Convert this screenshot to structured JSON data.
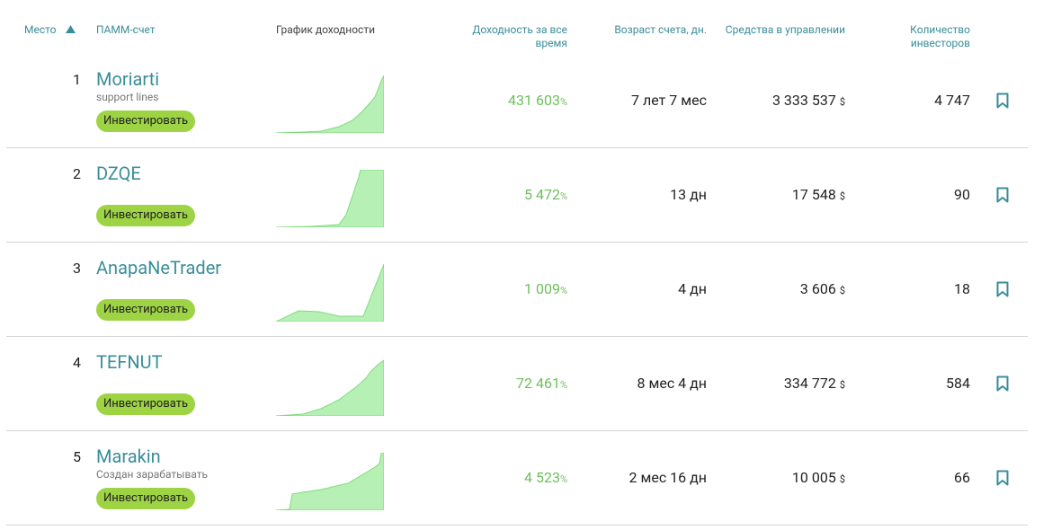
{
  "table": {
    "header": {
      "rank": "Место",
      "name": "ПАММ-счет",
      "chart": "График доходности",
      "return": "Доходность за все время",
      "age": "Возраст счета, дн.",
      "funds": "Средства в управлении",
      "investors": "Количество инвесторов"
    },
    "units": {
      "return": "%",
      "funds": "$"
    },
    "rows": [
      {
        "rank": 1,
        "name": "Moriarti",
        "subtitle": "support lines",
        "button": "Инвестировать",
        "return": "431 603",
        "age": "7 лет 7 мес",
        "funds": "3 333 537",
        "investors": "4 747"
      },
      {
        "rank": 2,
        "name": "DZQE",
        "button": "Инвестировать",
        "return": "5 472",
        "age": "13 дн",
        "funds": "17 548",
        "investors": "90"
      },
      {
        "rank": 3,
        "name": "AnapaNeTrader",
        "button": "Инвестировать",
        "return": "1 009",
        "age": "4 дн",
        "funds": "3 606",
        "investors": "18"
      },
      {
        "rank": 4,
        "name": "TEFNUT",
        "button": "Инвестировать",
        "return": "72 461",
        "age": "8 мес 4 дн",
        "funds": "334 772",
        "investors": "584"
      },
      {
        "rank": 5,
        "name": "Marakin",
        "subtitle": "Создан зарабатывать",
        "button": "Инвестировать",
        "return": "4 523",
        "age": "2 мес 16 дн",
        "funds": "10 005",
        "investors": "66"
      }
    ]
  }
}
